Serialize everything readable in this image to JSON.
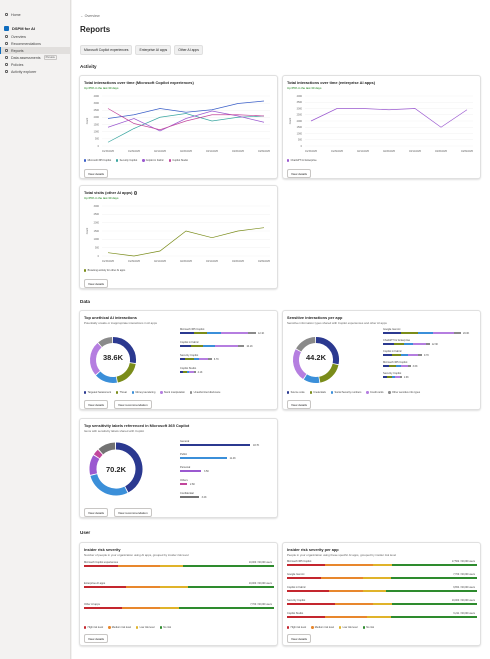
{
  "sidebar": {
    "home": "Home",
    "app_name": "DSPM for AI",
    "items": [
      {
        "label": "Overview",
        "active": false
      },
      {
        "label": "Recommendations",
        "active": false
      },
      {
        "label": "Reports",
        "active": true
      },
      {
        "label": "Data assessments",
        "badge": "Preview",
        "active": false
      },
      {
        "label": "Policies",
        "active": false
      },
      {
        "label": "Activity explorer",
        "active": false
      }
    ]
  },
  "header": {
    "back": "← Overview",
    "title": "Reports",
    "pills": [
      "Microsoft Copilot experiences",
      "Enterprise AI apps",
      "Other AI apps"
    ]
  },
  "sections": {
    "activity": "Activity",
    "data": "Data",
    "user": "User"
  },
  "colors": {
    "blue": "#3b5fc8",
    "teal": "#3aa6a0",
    "purple": "#9b59d0",
    "pink": "#c2469c",
    "navy": "#2b3990",
    "olive": "#7a8c1a",
    "orange": "#e8872d",
    "red": "#c4262e",
    "green": "#2e8b2e",
    "yellow": "#e0b32a",
    "gray": "#737373",
    "lavender": "#b57ee0"
  },
  "cards": {
    "interactions_copilot": {
      "title": "Total interactions over time (Microsoft Copilot experiences)",
      "subtitle": "Up 65% in the last 30 days",
      "button": "View details",
      "chart_data": {
        "type": "line",
        "x": [
          "01/15/2025",
          "01/29/2025",
          "02/12/2025",
          "02/26/2025",
          "03/12/2025",
          "03/26/2025",
          "04/09/2025"
        ],
        "ylim": [
          0,
          4000
        ],
        "yticks": [
          "4000",
          "3000",
          "2500",
          "2000",
          "1500",
          "1000",
          "500",
          "0"
        ],
        "ylabel": "Count",
        "series": [
          {
            "name": "Microsoft 365 Copilot",
            "color": "#3b5fc8",
            "values": [
              2200,
              2500,
              3000,
              2700,
              2900,
              3400,
              3600
            ]
          },
          {
            "name": "Security Copilot",
            "color": "#3aa6a0",
            "values": [
              300,
              1400,
              2300,
              2600,
              2000,
              2300,
              2400
            ]
          },
          {
            "name": "Copilot in Fabric",
            "color": "#9b59d0",
            "values": [
              1500,
              2200,
              1200,
              2200,
              2800,
              2400,
              1900
            ]
          },
          {
            "name": "Copilot Studio",
            "color": "#c2469c",
            "values": [
              3000,
              1800,
              1300,
              2000,
              2500,
              2500,
              2400
            ]
          }
        ]
      }
    },
    "interactions_enterprise": {
      "title": "Total interactions over time (enterprise AI apps)",
      "subtitle": "Up 65% in the last 30 days",
      "button": "View details",
      "chart_data": {
        "type": "line",
        "x": [
          "01/15/2025",
          "01/29/2025",
          "02/12/2025",
          "02/26/2025",
          "03/12/2025",
          "03/26/2025",
          "04/09/2025"
        ],
        "ylim": [
          0,
          4000
        ],
        "yticks": [
          "4000",
          "3500",
          "3000",
          "2500",
          "2000",
          "1500",
          "1000",
          "500",
          "0"
        ],
        "ylabel": "Count",
        "series": [
          {
            "name": "ChatGPT for Enterprise",
            "color": "#9b59d0",
            "values": [
              2000,
              3000,
              3000,
              2900,
              3000,
              1500,
              2900
            ]
          }
        ]
      }
    },
    "visits_other": {
      "title": "Total visits (other AI apps)",
      "subtitle": "Up 65% in the last 30 days",
      "button": "View details",
      "chart_data": {
        "type": "line",
        "x": [
          "01/15/2025",
          "01/29/2025",
          "02/12/2025",
          "02/26/2025",
          "03/12/2025",
          "03/26/2025",
          "04/09/2025"
        ],
        "ylim": [
          0,
          3000
        ],
        "yticks": [
          "3000",
          "2500",
          "2000",
          "1500",
          "1000",
          "500",
          "0"
        ],
        "ylabel": "Count",
        "series": [
          {
            "name": "Browsing activity for other AI apps",
            "color": "#7a8c1a",
            "values": [
              200,
              0,
              300,
              1500,
              1100,
              1500,
              1700
            ]
          }
        ]
      }
    },
    "unethical": {
      "title": "Top unethical AI interactions",
      "subtitle": "Potentially unsafe or inappropriate interactions in AI apps",
      "center": "38.6K",
      "buttons": [
        "View details",
        "View recommendation"
      ],
      "legend": [
        {
          "label": "Targeted harassment",
          "color": "#2b3990"
        },
        {
          "label": "Threat",
          "color": "#7a8c1a"
        },
        {
          "label": "Money laundering",
          "color": "#3b8fd9"
        },
        {
          "label": "Stock manipulation",
          "color": "#b57ee0"
        },
        {
          "label": "Unauthorized disclosure",
          "color": "#8a8a8a"
        }
      ],
      "chart_data": {
        "type": "bar",
        "categories": [
          "Microsoft 365 Copilot",
          "Copilot in Fabric",
          "Security Copilot",
          "Copilot Studio"
        ],
        "series": [
          {
            "name": "Targeted harassment",
            "values": [
              2.0,
              1.6,
              0.8,
              0.5
            ]
          },
          {
            "name": "Threat",
            "values": [
              2.0,
              1.8,
              1.2,
              0.5
            ]
          },
          {
            "name": "Money laundering",
            "values": [
              2.0,
              1.7,
              0.8,
              0.4
            ]
          },
          {
            "name": "Stock manipulation",
            "values": [
              4.0,
              3.5,
              1.4,
              0.6
            ]
          },
          {
            "name": "Unauthorized disclosure",
            "values": [
              1.2,
              0.9,
              0.5,
              0.3
            ]
          }
        ],
        "value_labels": [
          "12.1K",
          "10.1K",
          "6.7K",
          "4.1K"
        ],
        "donut": [
          10,
          7,
          6,
          9,
          4
        ]
      }
    },
    "sensitive": {
      "title": "Sensitive interactions per app",
      "subtitle": "Sensitive information types shared with Copilot experiences and other AI apps",
      "center": "44.2K",
      "buttons": [
        "View details"
      ],
      "legend": [
        {
          "label": "Source code",
          "color": "#2b3990"
        },
        {
          "label": "Credentials",
          "color": "#7a8c1a"
        },
        {
          "label": "Social Security numbers",
          "color": "#3b8fd9"
        },
        {
          "label": "Credit cards",
          "color": "#b57ee0"
        },
        {
          "label": "Other sensitive info types",
          "color": "#8a8a8a"
        }
      ],
      "chart_data": {
        "type": "bar",
        "categories": [
          "Google Gemini",
          "ChatGPT for Enterprise",
          "Copilot in Fabric",
          "Microsoft 365 Copilot",
          "Security Copilot"
        ],
        "series": [
          {
            "name": "Source code",
            "values": [
              5,
              3,
              2.5,
              1.8,
              1.2
            ]
          },
          {
            "name": "Credentials",
            "values": [
              5,
              3,
              2.5,
              1.8,
              1.2
            ]
          },
          {
            "name": "Social Security numbers",
            "values": [
              4,
              2.5,
              2,
              1.4,
              1
            ]
          },
          {
            "name": "Credit cards",
            "values": [
              6,
              3.5,
              3,
              2,
              1.4
            ]
          },
          {
            "name": "Other sensitive info types",
            "values": [
              2,
              1.2,
              1,
              0.8,
              0.5
            ]
          }
        ],
        "value_labels": [
          "20.0K",
          "12.3K",
          "9.7K",
          "3.6K",
          "1.6K"
        ],
        "donut": [
          12,
          8,
          5,
          10,
          7
        ]
      }
    },
    "labels": {
      "title": "Top sensitivity labels referenced in Microsoft 365 Copilot",
      "subtitle": "Items with sensitivity labels shared with Copilot",
      "center": "70.2K",
      "buttons": [
        "View details",
        "View recommendation"
      ],
      "chart_data": {
        "type": "bar",
        "categories": [
          "General",
          "Public",
          "Personal",
          "Others",
          "Confidential"
        ],
        "colors": [
          "#2b3990",
          "#3b8fd9",
          "#9b59d0",
          "#c2469c",
          "#737373"
        ],
        "values": [
          30,
          20,
          9,
          3,
          8
        ],
        "value_labels": [
          "18.7K",
          "11.4K",
          "3.5K",
          "2.6K",
          "3.2K"
        ]
      }
    },
    "insider": {
      "title": "Insider risk severity",
      "subtitle": "Number of people in your organization using AI apps, grouped by insider risk level",
      "button": "View details",
      "legend": [
        {
          "label": "High risk level",
          "color": "#c4262e"
        },
        {
          "label": "Medium risk level",
          "color": "#e8872d"
        },
        {
          "label": "Low risk level",
          "color": "#e0b32a"
        },
        {
          "label": "No risk",
          "color": "#2e8b2e"
        }
      ],
      "chart_data": {
        "type": "bar",
        "categories": [
          "Microsoft Copilot experiences",
          "Enterprise AI apps",
          "Other AI apps"
        ],
        "series": [
          {
            "name": "High risk level",
            "values": [
              18,
              22,
              20
            ]
          },
          {
            "name": "Medium risk level",
            "values": [
              22,
              18,
              20
            ]
          },
          {
            "name": "Low risk level",
            "values": [
              12,
              15,
              10
            ]
          },
          {
            "name": "No risk",
            "values": [
              48,
              45,
              50
            ]
          }
        ],
        "value_labels": [
          "10,000 / 30,000 users",
          "10,000 / 30,000 users",
          "7,700 / 30,000 users"
        ]
      }
    },
    "insider_app": {
      "title": "Insider risk severity per app",
      "subtitle": "People in your organization using these specific AI apps, grouped by insider risk level",
      "button": "View details",
      "legend": [
        {
          "label": "High risk level",
          "color": "#c4262e"
        },
        {
          "label": "Medium risk level",
          "color": "#e8872d"
        },
        {
          "label": "Low risk level",
          "color": "#e0b32a"
        },
        {
          "label": "No risk",
          "color": "#2e8b2e"
        }
      ],
      "chart_data": {
        "type": "bar",
        "categories": [
          "Microsoft 365 Copilot",
          "Google Gemini",
          "Copilot in Fabric",
          "Security Copilot",
          "Copilot Studio"
        ],
        "series": [
          {
            "name": "High risk level",
            "values": [
              20,
              18,
              22,
              25,
              20
            ]
          },
          {
            "name": "Medium risk level",
            "values": [
              25,
              22,
              18,
              20,
              22
            ]
          },
          {
            "name": "Low risk level",
            "values": [
              10,
              15,
              12,
              10,
              13
            ]
          },
          {
            "name": "No risk",
            "values": [
              45,
              45,
              48,
              45,
              45
            ]
          }
        ],
        "value_labels": [
          "17,562 / 30,000 users",
          "7,700 / 30,000 users",
          "9,654 / 30,000 users",
          "10,000 / 30,000 users",
          "6,211 / 30,000 users"
        ]
      }
    }
  }
}
